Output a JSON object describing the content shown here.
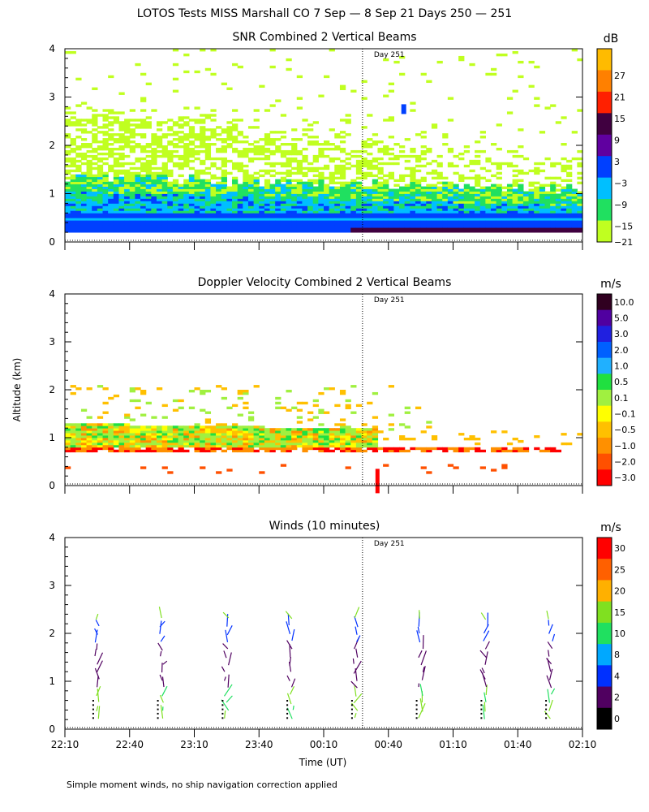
{
  "figure": {
    "main_title": "LOTOS Tests MISS Marshall CO   7 Sep —  8 Sep 21 Days 250 — 251",
    "ylabel": "Altitude (km)",
    "xlabel": "Time (UT)",
    "footnote": "Simple moment winds, no ship navigation correction applied",
    "day_marker": "Day 251",
    "time_ticks": [
      "22:10",
      "22:40",
      "23:10",
      "23:40",
      "00:10",
      "00:40",
      "01:10",
      "01:40",
      "02:10"
    ]
  },
  "chart_data": [
    {
      "type": "heatmap",
      "title": "SNR Combined 2 Vertical Beams",
      "ylabel": "Altitude (km)",
      "xlabel": "Time (UT)",
      "x_range_hours_since_22_10": [
        0,
        4
      ],
      "ylim": [
        0,
        4
      ],
      "y_ticks": [
        "0",
        "1",
        "2",
        "3",
        "4"
      ],
      "colorbar": {
        "unit": "dB",
        "labels": [
          "27",
          "21",
          "15",
          "9",
          "3",
          "−3",
          "−9",
          "−15",
          "−21"
        ],
        "colors": [
          "#ffbb00",
          "#ff8000",
          "#ff2000",
          "#400040",
          "#6000a0",
          "#0040ff",
          "#00bfff",
          "#20e060",
          "#c0ff20"
        ]
      }
    },
    {
      "type": "heatmap",
      "title": "Doppler Velocity Combined 2 Vertical Beams",
      "ylabel": "Altitude (km)",
      "xlabel": "Time (UT)",
      "x_range_hours_since_22_10": [
        0,
        4
      ],
      "ylim": [
        0,
        4
      ],
      "y_ticks": [
        "0",
        "1",
        "2",
        "3",
        "4"
      ],
      "colorbar": {
        "unit": "m/s",
        "labels": [
          "10.0",
          "5.0",
          "3.0",
          "2.0",
          "1.0",
          "0.5",
          "0.1",
          "−0.1",
          "−0.5",
          "−1.0",
          "−2.0",
          "−3.0"
        ],
        "colors": [
          "#300020",
          "#5000a0",
          "#2020e0",
          "#0060ff",
          "#20b0ff",
          "#20e040",
          "#a0f040",
          "#ffff00",
          "#ffc000",
          "#ff9000",
          "#ff5000",
          "#ff0000"
        ]
      }
    },
    {
      "type": "scatter",
      "title": "Winds (10 minutes)",
      "ylabel": "Altitude (km)",
      "xlabel": "Time (UT)",
      "x_range_hours_since_22_10": [
        0,
        4
      ],
      "ylim": [
        0,
        4
      ],
      "y_ticks": [
        "0",
        "1",
        "2",
        "3",
        "4"
      ],
      "colorbar": {
        "unit": "m/s",
        "labels": [
          "30",
          "25",
          "20",
          "15",
          "10",
          "8",
          "4",
          "2",
          "0"
        ],
        "colors": [
          "#ff0000",
          "#ff6000",
          "#ffb000",
          "#80e020",
          "#20e060",
          "#00a8ff",
          "#0030ff",
          "#500060",
          "#000000"
        ]
      },
      "profile_times_hours": [
        0.25,
        0.75,
        1.25,
        1.75,
        2.25,
        2.75,
        3.25,
        3.75
      ]
    }
  ]
}
